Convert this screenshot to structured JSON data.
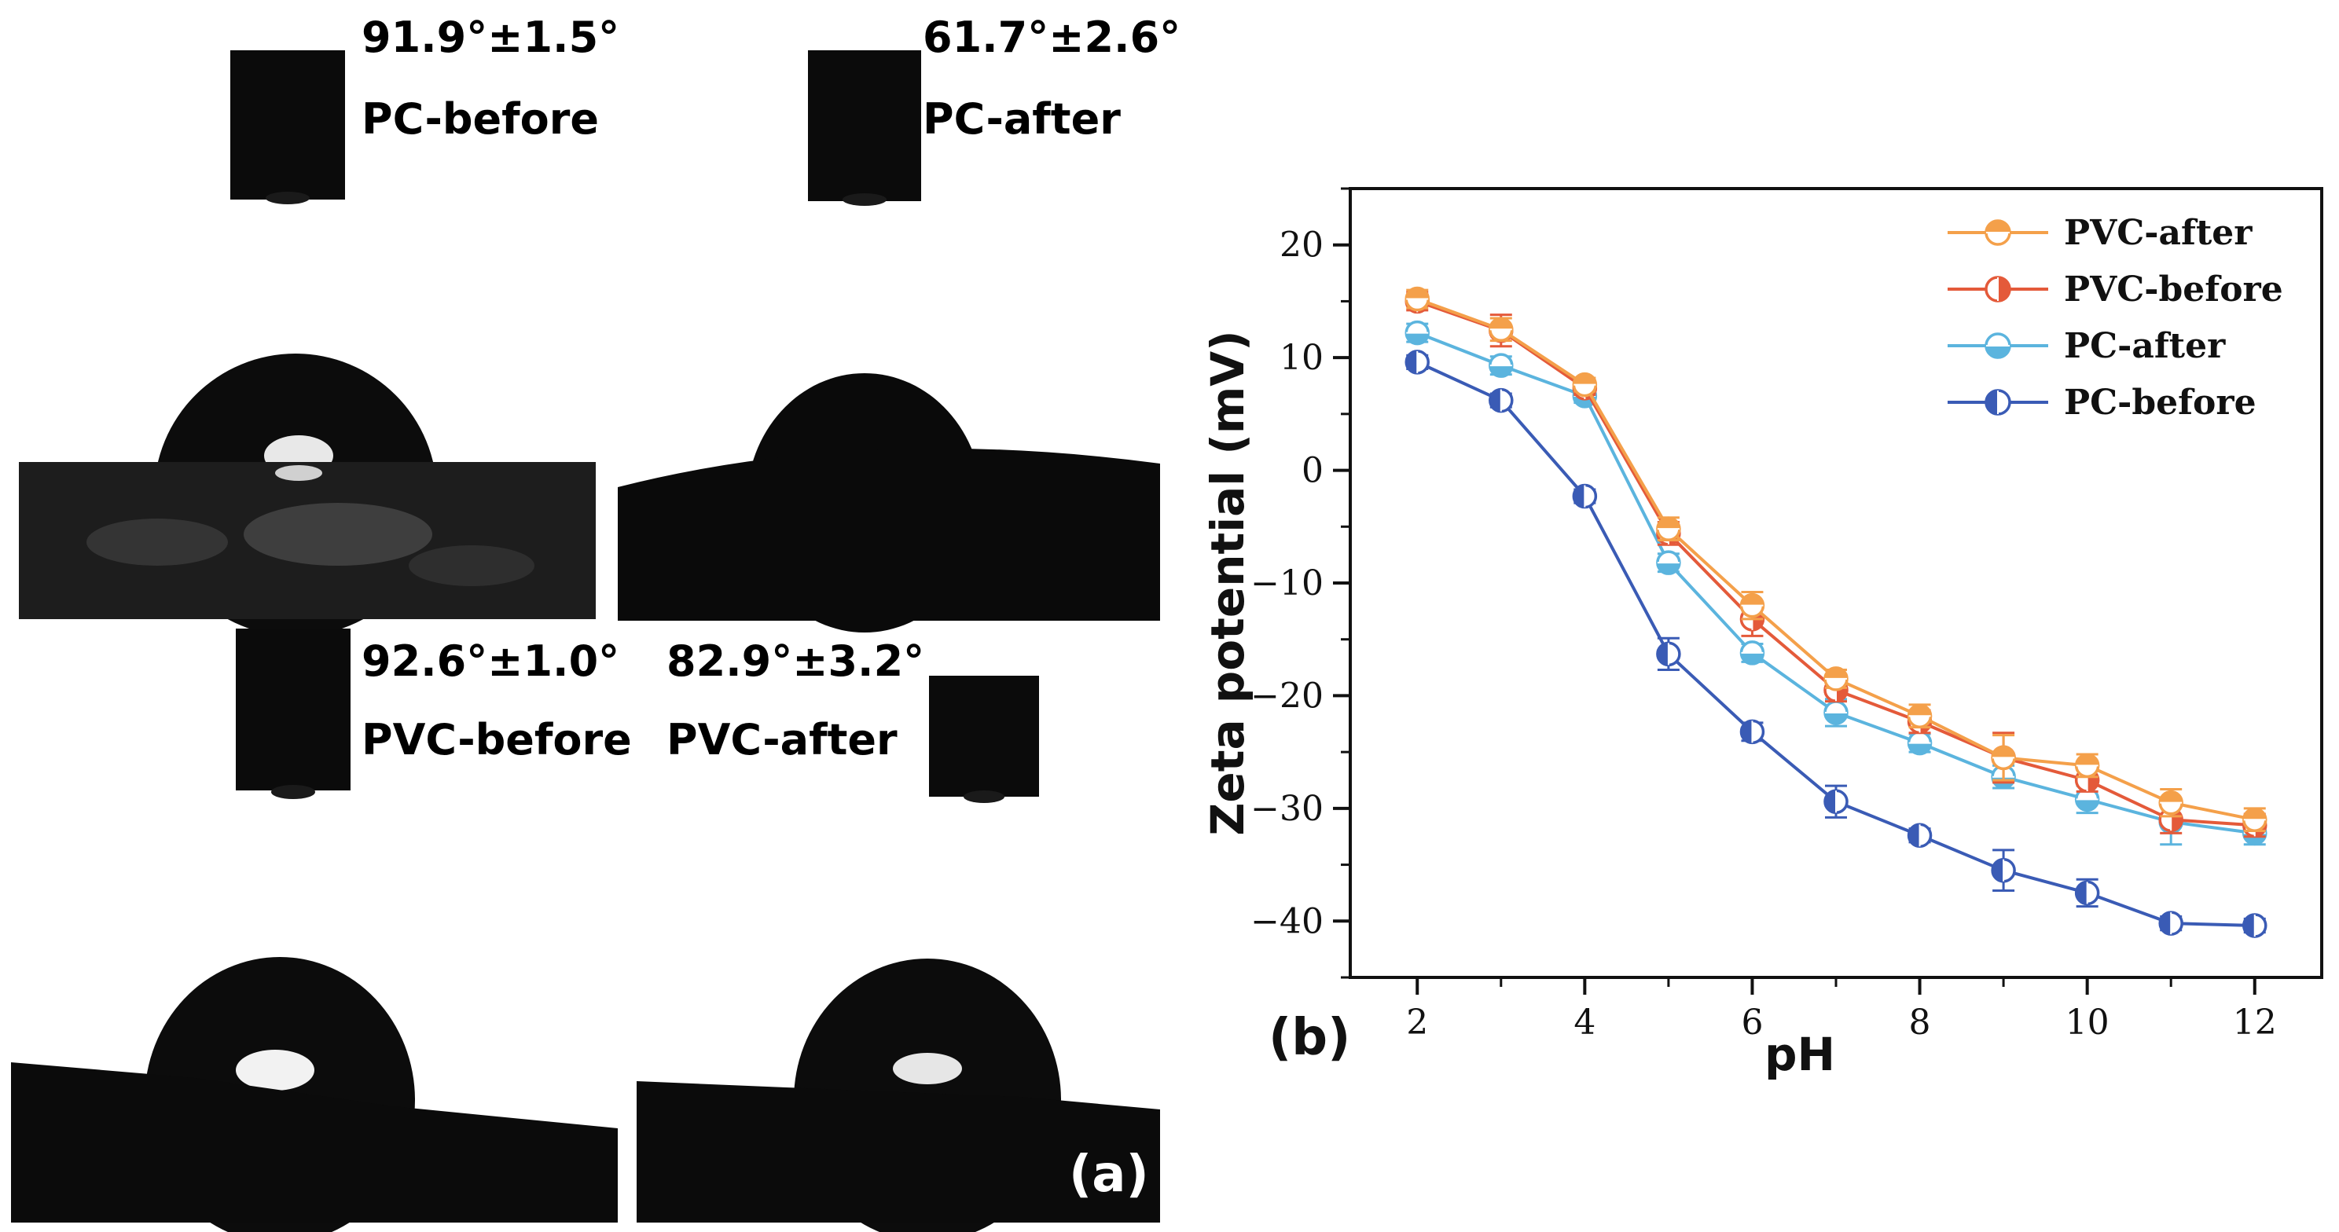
{
  "panel_a": {
    "tag": "(a)",
    "cells": [
      {
        "angle": "91.9°±1.5°",
        "sample": "PC-before"
      },
      {
        "angle": "61.7°±2.6°",
        "sample": "PC-after"
      },
      {
        "angle": "92.6°±1.0°",
        "sample": "PVC-before"
      },
      {
        "angle": "82.9°±3.2°",
        "sample": "PVC-after"
      }
    ]
  },
  "panel_b_tag": "(b)",
  "chart_data": {
    "type": "line",
    "title": "",
    "xlabel": "pH",
    "ylabel": "Zeta potential (mV)",
    "xlim": [
      1.2,
      12.8
    ],
    "ylim": [
      -45,
      25
    ],
    "xticks": [
      2,
      4,
      6,
      8,
      10,
      12
    ],
    "yticks": [
      20,
      10,
      0,
      -10,
      -20,
      -30,
      -40
    ],
    "xtick_labels": [
      "2",
      "4",
      "6",
      "8",
      "10",
      "12"
    ],
    "ytick_labels": [
      "20",
      "10",
      "0",
      "−10",
      "−20",
      "−30",
      "−40"
    ],
    "x": [
      2,
      3,
      4,
      5,
      6,
      7,
      8,
      9,
      10,
      11,
      12
    ],
    "legend_position": "top-right",
    "series": [
      {
        "name": "PVC-after",
        "color": "#F4A04A",
        "marker": "top-filled",
        "values": [
          15.2,
          12.5,
          7.6,
          -5.2,
          -12.0,
          -18.5,
          -21.8,
          -25.5,
          -26.2,
          -29.5,
          -31.0
        ],
        "errors": [
          0.8,
          1.0,
          0.6,
          1.0,
          1.2,
          0.8,
          1.0,
          2.0,
          1.0,
          1.2,
          1.0
        ]
      },
      {
        "name": "PVC-before",
        "color": "#E45A3A",
        "marker": "right-filled",
        "values": [
          15.0,
          12.4,
          7.3,
          -5.6,
          -13.2,
          -19.5,
          -22.3,
          -25.5,
          -27.5,
          -31.0,
          -31.5
        ],
        "errors": [
          0.8,
          1.4,
          0.6,
          1.0,
          1.5,
          1.0,
          1.0,
          2.2,
          1.0,
          1.2,
          1.0
        ]
      },
      {
        "name": "PC-after",
        "color": "#5BB4DE",
        "marker": "bottom-filled",
        "values": [
          12.2,
          9.3,
          6.6,
          -8.2,
          -16.2,
          -21.5,
          -24.2,
          -27.2,
          -29.2,
          -31.2,
          -32.2
        ],
        "errors": [
          0.8,
          0.8,
          0.6,
          0.8,
          0.8,
          1.2,
          0.8,
          1.0,
          1.2,
          2.0,
          1.0
        ]
      },
      {
        "name": "PC-before",
        "color": "#3A5BB5",
        "marker": "left-filled",
        "values": [
          9.6,
          6.2,
          -2.3,
          -16.3,
          -23.2,
          -29.4,
          -32.4,
          -35.5,
          -37.5,
          -40.2,
          -40.4
        ],
        "errors": [
          0.6,
          0.6,
          0.6,
          1.4,
          0.8,
          1.4,
          0.6,
          1.8,
          1.2,
          0.6,
          0.6
        ]
      }
    ]
  }
}
